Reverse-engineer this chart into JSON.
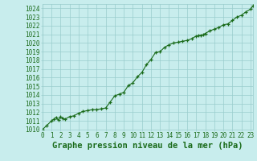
{
  "title": "Graphe pression niveau de la mer (hPa)",
  "x_values": [
    0,
    0.5,
    1,
    1.25,
    1.5,
    1.75,
    2,
    2.25,
    2.5,
    3,
    3.5,
    4,
    4.5,
    5,
    5.5,
    6,
    6.5,
    7,
    7.5,
    8,
    8.5,
    9,
    9.5,
    10,
    10.5,
    11,
    11.5,
    12,
    12.5,
    13,
    13.5,
    14,
    14.5,
    15,
    15.5,
    16,
    16.5,
    17,
    17.25,
    17.5,
    17.75,
    18,
    18.5,
    19,
    19.5,
    20,
    20.5,
    21,
    21.5,
    22,
    22.5,
    23,
    23.3
  ],
  "y_values": [
    1010.0,
    1010.5,
    1011.0,
    1011.2,
    1011.4,
    1011.1,
    1011.5,
    1011.3,
    1011.2,
    1011.5,
    1011.6,
    1011.9,
    1012.1,
    1012.2,
    1012.3,
    1012.3,
    1012.4,
    1012.5,
    1013.2,
    1013.9,
    1014.1,
    1014.3,
    1015.1,
    1015.4,
    1016.1,
    1016.6,
    1017.5,
    1018.1,
    1018.9,
    1019.0,
    1019.5,
    1019.8,
    1020.0,
    1020.1,
    1020.2,
    1020.3,
    1020.5,
    1020.8,
    1020.85,
    1020.9,
    1020.95,
    1021.1,
    1021.4,
    1021.6,
    1021.8,
    1022.1,
    1022.2,
    1022.6,
    1023.0,
    1023.2,
    1023.6,
    1023.9,
    1024.3
  ],
  "xlim": [
    0,
    23.3
  ],
  "ylim": [
    1010,
    1024.5
  ],
  "ytick_min": 1010,
  "ytick_max": 1024,
  "xtick_labels": [
    "0",
    "1",
    "2",
    "3",
    "4",
    "5",
    "6",
    "7",
    "8",
    "9",
    "10",
    "11",
    "12",
    "13",
    "14",
    "15",
    "16",
    "17",
    "18",
    "19",
    "20",
    "21",
    "22",
    "23"
  ],
  "line_color": "#1a6b1a",
  "marker_color": "#1a6b1a",
  "bg_color": "#c8eded",
  "grid_color": "#99cccc",
  "title_color": "#1a6b1a",
  "title_fontsize": 7.5,
  "tick_fontsize": 5.5,
  "marker_size": 3.0,
  "line_width": 0.8
}
